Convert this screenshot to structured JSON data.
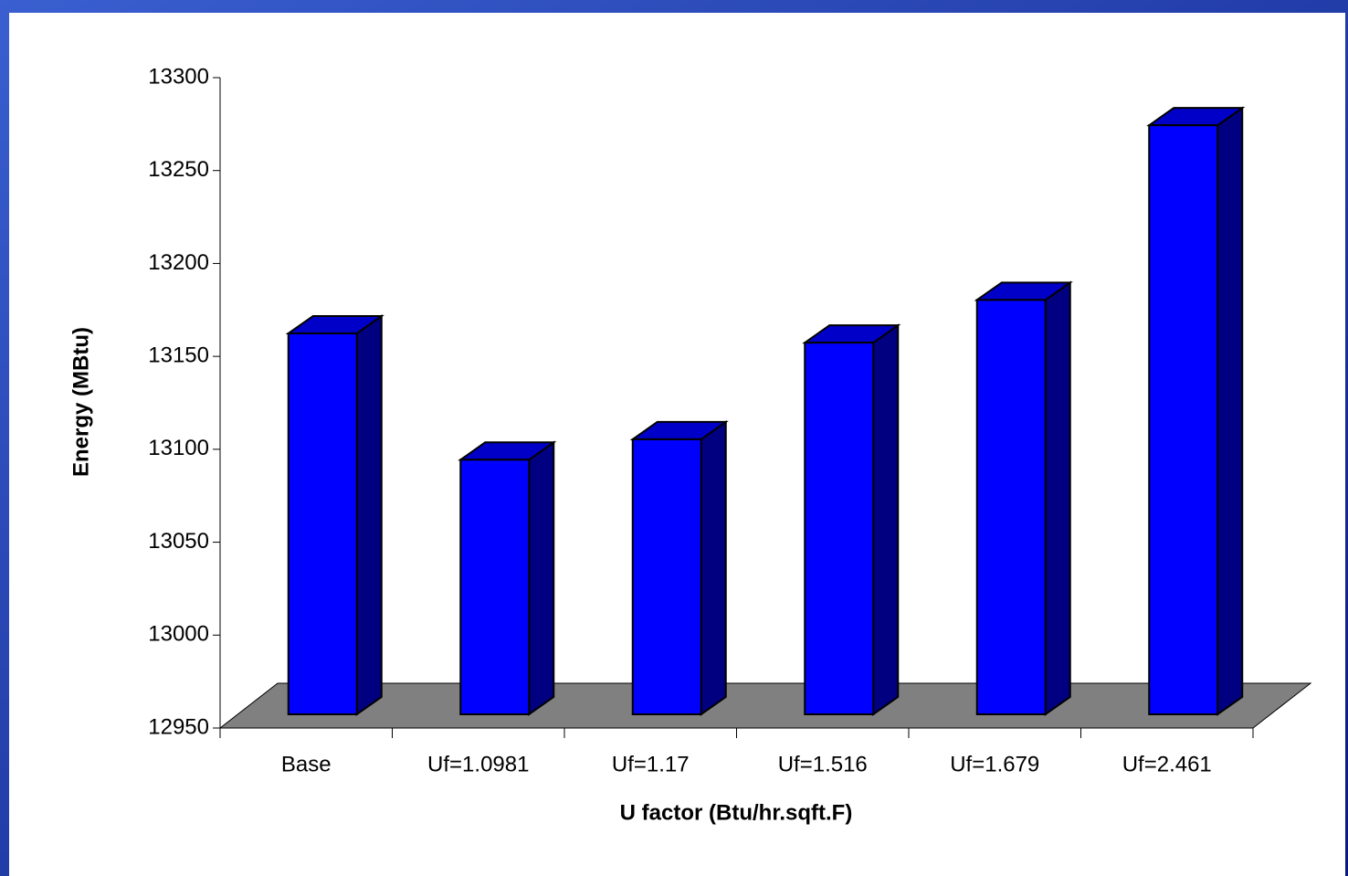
{
  "chart_data": {
    "type": "bar3d",
    "xlabel": "U factor (Btu/hr.sqft.F)",
    "ylabel": "Energy (MBtu)",
    "categories": [
      "Base",
      "Uf=1.0981",
      "Uf=1.17",
      "Uf=1.516",
      "Uf=1.679",
      "Uf=2.461"
    ],
    "values": [
      13155,
      13087,
      13098,
      13150,
      13173,
      13267
    ],
    "color": "#0000ff",
    "ylim": [
      12950,
      13300
    ],
    "yticks": [
      12950,
      13000,
      13050,
      13100,
      13150,
      13200,
      13250,
      13300
    ]
  }
}
